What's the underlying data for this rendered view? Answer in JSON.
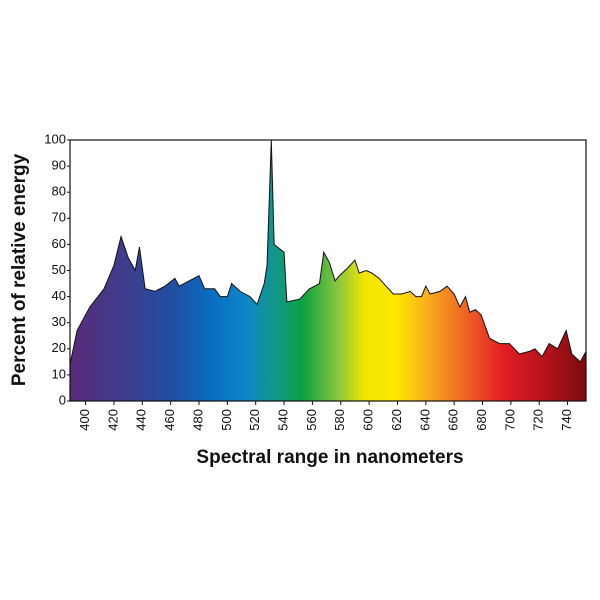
{
  "chart_data": {
    "type": "area",
    "xlabel": "Spectral range in nanometers",
    "ylabel": "Percent of relative energy",
    "x": [
      389,
      394,
      403,
      413,
      420,
      425,
      430,
      435,
      438,
      442,
      449,
      456,
      463,
      466,
      473,
      480,
      484,
      491,
      495,
      500,
      503,
      509,
      516,
      521,
      526,
      528,
      531,
      533,
      540,
      542,
      551,
      558,
      565,
      568,
      572,
      576,
      579,
      585,
      590,
      593,
      598,
      602,
      607,
      612,
      617,
      623,
      629,
      633,
      637,
      640,
      643,
      650,
      655,
      660,
      664,
      668,
      671,
      675,
      679,
      685,
      692,
      699,
      706,
      713,
      717,
      722,
      727,
      733,
      739,
      743,
      749,
      753
    ],
    "values": [
      14,
      27,
      36,
      43,
      52,
      63,
      55,
      50,
      59,
      43,
      42,
      44,
      47,
      44,
      46,
      48,
      43,
      43,
      40,
      40,
      45,
      42,
      40,
      37,
      45,
      52,
      100,
      60,
      57,
      38,
      39,
      43,
      45,
      57,
      53,
      46,
      48,
      51,
      54,
      49,
      50,
      49,
      47,
      44,
      41,
      41,
      42,
      40,
      40,
      44,
      41,
      42,
      44,
      41,
      36,
      40,
      34,
      35,
      33,
      24,
      22,
      22,
      18,
      19,
      20,
      17,
      22,
      20,
      27,
      18,
      15,
      19
    ],
    "xlim": [
      389,
      753
    ],
    "ylim": [
      0,
      100
    ],
    "xticks": [
      400,
      420,
      440,
      460,
      480,
      500,
      520,
      540,
      560,
      580,
      600,
      620,
      640,
      660,
      680,
      700,
      720,
      740
    ],
    "yticks": [
      0,
      10,
      20,
      30,
      40,
      50,
      60,
      70,
      80,
      90,
      100
    ],
    "grid": false
  }
}
